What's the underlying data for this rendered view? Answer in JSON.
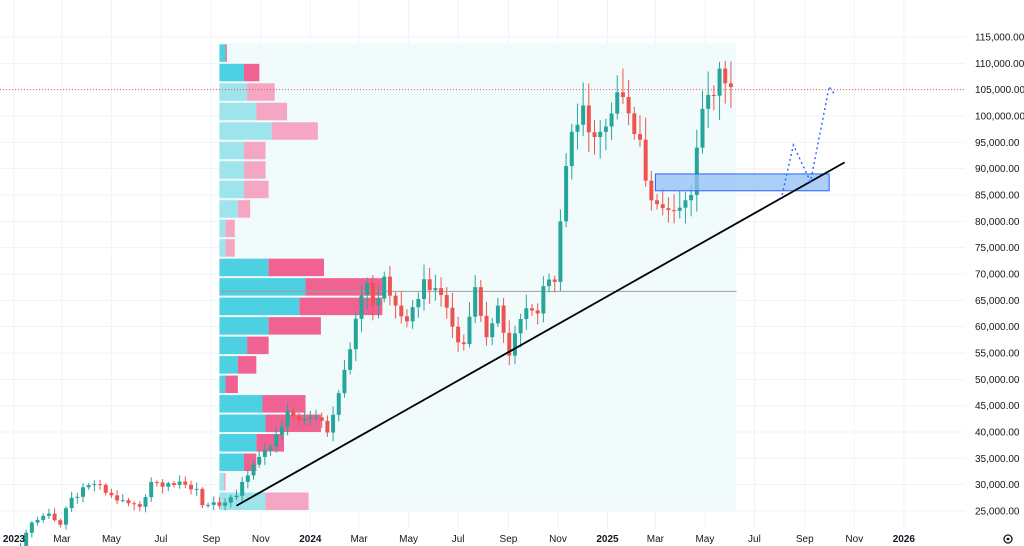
{
  "colors": {
    "up": "#26a69a",
    "down": "#ef5350",
    "background": "#ffffff",
    "grid": "#f0f3fa",
    "vp_area": "#f2fbfc",
    "vp_buy": "#4dd0e1",
    "vp_sell": "#f06292",
    "vp_buy_outside": "#9ee4ec",
    "vp_sell_outside": "#f5a6c2",
    "price_line": "#ef5350",
    "poc_line": "#9e9e9e",
    "trendline": "#000000",
    "zone_fill": "#90bff5",
    "zone_border": "#2962ff",
    "projection": "#2962ff"
  },
  "chart_data": {
    "type": "candlestick",
    "title": "",
    "xlabel": "",
    "ylabel": "",
    "interval": "weekly",
    "ylim": [
      22500,
      117000
    ],
    "y_ticks": [
      25000,
      30000,
      35000,
      40000,
      45000,
      50000,
      55000,
      60000,
      65000,
      70000,
      75000,
      80000,
      85000,
      90000,
      95000,
      100000,
      105000,
      110000,
      115000
    ],
    "y_tick_labels": [
      "25,000.00",
      "30,000.00",
      "35,000.00",
      "40,000.00",
      "45,000.00",
      "50,000.00",
      "55,000.00",
      "60,000.00",
      "65,000.00",
      "70,000.00",
      "75,000.00",
      "80,000.00",
      "85,000.00",
      "90,000.00",
      "95,000.00",
      "100,000.00",
      "105,000.00",
      "110,000.00",
      "115,000.00"
    ],
    "x_range": [
      "2023-01-01",
      "2026-03-05"
    ],
    "x_ticks": [
      {
        "date": "2023-01-01",
        "label": "2023",
        "bold": true
      },
      {
        "date": "2023-03-01",
        "label": "Mar",
        "bold": false
      },
      {
        "date": "2023-05-01",
        "label": "May",
        "bold": false
      },
      {
        "date": "2023-07-01",
        "label": "Jul",
        "bold": false
      },
      {
        "date": "2023-09-01",
        "label": "Sep",
        "bold": false
      },
      {
        "date": "2023-11-01",
        "label": "Nov",
        "bold": false
      },
      {
        "date": "2024-01-01",
        "label": "2024",
        "bold": true
      },
      {
        "date": "2024-03-01",
        "label": "Mar",
        "bold": false
      },
      {
        "date": "2024-05-01",
        "label": "May",
        "bold": false
      },
      {
        "date": "2024-07-01",
        "label": "Jul",
        "bold": false
      },
      {
        "date": "2024-09-01",
        "label": "Sep",
        "bold": false
      },
      {
        "date": "2024-11-01",
        "label": "Nov",
        "bold": false
      },
      {
        "date": "2025-01-01",
        "label": "2025",
        "bold": true
      },
      {
        "date": "2025-03-01",
        "label": "Mar",
        "bold": false
      },
      {
        "date": "2025-05-01",
        "label": "May",
        "bold": false
      },
      {
        "date": "2025-07-01",
        "label": "Jul",
        "bold": false
      },
      {
        "date": "2025-09-01",
        "label": "Sep",
        "bold": false
      },
      {
        "date": "2025-11-01",
        "label": "Nov",
        "bold": false
      },
      {
        "date": "2026-01-01",
        "label": "2026",
        "bold": true
      }
    ],
    "anchor_closes": [
      [
        "2023-01-02",
        16800
      ],
      [
        "2023-01-23",
        22800
      ],
      [
        "2023-02-13",
        24500
      ],
      [
        "2023-02-27",
        22400
      ],
      [
        "2023-03-13",
        27500
      ],
      [
        "2023-04-10",
        30100
      ],
      [
        "2023-05-08",
        27000
      ],
      [
        "2023-06-05",
        25800
      ],
      [
        "2023-06-19",
        30500
      ],
      [
        "2023-07-10",
        30300
      ],
      [
        "2023-08-14",
        29200
      ],
      [
        "2023-08-21",
        26100
      ],
      [
        "2023-09-11",
        26000
      ],
      [
        "2023-10-02",
        27900
      ],
      [
        "2023-10-23",
        33800
      ],
      [
        "2023-11-13",
        37200
      ],
      [
        "2023-12-04",
        44000
      ],
      [
        "2023-12-25",
        42500
      ],
      [
        "2024-01-08",
        42800
      ],
      [
        "2024-01-22",
        39900
      ],
      [
        "2024-02-12",
        51800
      ],
      [
        "2024-02-26",
        61500
      ],
      [
        "2024-03-11",
        68300
      ],
      [
        "2024-03-18",
        64000
      ],
      [
        "2024-04-01",
        69500
      ],
      [
        "2024-04-15",
        64000
      ],
      [
        "2024-04-29",
        61000
      ],
      [
        "2024-05-20",
        69000
      ],
      [
        "2024-06-10",
        66000
      ],
      [
        "2024-06-24",
        60000
      ],
      [
        "2024-07-08",
        56700
      ],
      [
        "2024-07-22",
        67500
      ],
      [
        "2024-08-05",
        58000
      ],
      [
        "2024-08-19",
        64000
      ],
      [
        "2024-09-02",
        54500
      ],
      [
        "2024-09-23",
        63500
      ],
      [
        "2024-10-07",
        62500
      ],
      [
        "2024-10-14",
        67700
      ],
      [
        "2024-10-28",
        68500
      ],
      [
        "2024-11-04",
        80000
      ],
      [
        "2024-11-11",
        90500
      ],
      [
        "2024-11-18",
        97000
      ],
      [
        "2024-12-02",
        102000
      ],
      [
        "2024-12-16",
        96000
      ],
      [
        "2024-12-30",
        98000
      ],
      [
        "2025-01-13",
        104500
      ],
      [
        "2025-01-27",
        100500
      ],
      [
        "2025-02-10",
        95500
      ],
      [
        "2025-02-24",
        84000
      ],
      [
        "2025-03-10",
        82500
      ],
      [
        "2025-03-24",
        82000
      ],
      [
        "2025-04-07",
        84000
      ],
      [
        "2025-04-14",
        85000
      ],
      [
        "2025-04-21",
        94000
      ],
      [
        "2025-05-05",
        104000
      ],
      [
        "2025-05-19",
        109000
      ],
      [
        "2025-06-02",
        105500
      ]
    ],
    "volume_profile": {
      "range_start": "2023-09-11",
      "range_end": "2025-06-09",
      "point_of_control": 66700,
      "outside_value_area_rows": [
        0,
        1,
        13,
        14,
        15,
        16,
        17,
        18,
        19,
        20,
        21
      ],
      "rows": [
        {
          "low": 25000,
          "high": 28700,
          "buy": 15,
          "sell": 14
        },
        {
          "low": 28700,
          "high": 32400,
          "buy": 1.5,
          "sell": 0.5
        },
        {
          "low": 32400,
          "high": 36100,
          "buy": 8,
          "sell": 4
        },
        {
          "low": 36100,
          "high": 39800,
          "buy": 12,
          "sell": 9
        },
        {
          "low": 39800,
          "high": 43500,
          "buy": 15,
          "sell": 18
        },
        {
          "low": 43500,
          "high": 47200,
          "buy": 14,
          "sell": 14
        },
        {
          "low": 47200,
          "high": 50900,
          "buy": 2,
          "sell": 4
        },
        {
          "low": 50900,
          "high": 54600,
          "buy": 6,
          "sell": 6
        },
        {
          "low": 54600,
          "high": 58300,
          "buy": 9,
          "sell": 7
        },
        {
          "low": 58300,
          "high": 62000,
          "buy": 16,
          "sell": 17
        },
        {
          "low": 62000,
          "high": 65700,
          "buy": 26,
          "sell": 27
        },
        {
          "low": 65700,
          "high": 69400,
          "buy": 28,
          "sell": 25
        },
        {
          "low": 69400,
          "high": 73100,
          "buy": 16,
          "sell": 18
        },
        {
          "low": 73100,
          "high": 76800,
          "buy": 2,
          "sell": 3
        },
        {
          "low": 76800,
          "high": 80500,
          "buy": 2,
          "sell": 3
        },
        {
          "low": 80500,
          "high": 84200,
          "buy": 6,
          "sell": 4
        },
        {
          "low": 84200,
          "high": 87900,
          "buy": 8,
          "sell": 8
        },
        {
          "low": 87900,
          "high": 91600,
          "buy": 8,
          "sell": 7
        },
        {
          "low": 91600,
          "high": 95300,
          "buy": 8,
          "sell": 7
        },
        {
          "low": 95300,
          "high": 99000,
          "buy": 17,
          "sell": 15
        },
        {
          "low": 99000,
          "high": 102700,
          "buy": 12,
          "sell": 10
        },
        {
          "low": 102700,
          "high": 106400,
          "buy": 9,
          "sell": 9
        },
        {
          "low": 106400,
          "high": 110100,
          "buy": 8,
          "sell": 5
        },
        {
          "low": 110100,
          "high": 113800,
          "buy": 2,
          "sell": 0.4
        }
      ]
    },
    "horizontal_lines": [
      {
        "kind": "current-price",
        "price": 105000,
        "style": "dotted",
        "color": "#ef5350"
      },
      {
        "kind": "point-of-control",
        "price": 66700,
        "style": "solid",
        "color": "#9e9e9e"
      }
    ],
    "trendline": {
      "start": {
        "date": "2023-10-02",
        "price": 26000
      },
      "end": {
        "date": "2025-10-20",
        "price": 91200
      }
    },
    "zone": {
      "start": "2025-03-01",
      "end": "2025-10-01",
      "high": 89000,
      "low": 85800
    },
    "projection_path": [
      {
        "date": "2025-08-04",
        "price": 85000
      },
      {
        "date": "2025-08-18",
        "price": 94500
      },
      {
        "date": "2025-09-08",
        "price": 87500
      },
      {
        "date": "2025-10-01",
        "price": 105600
      },
      {
        "date": "2025-10-08",
        "price": 104000
      }
    ]
  }
}
